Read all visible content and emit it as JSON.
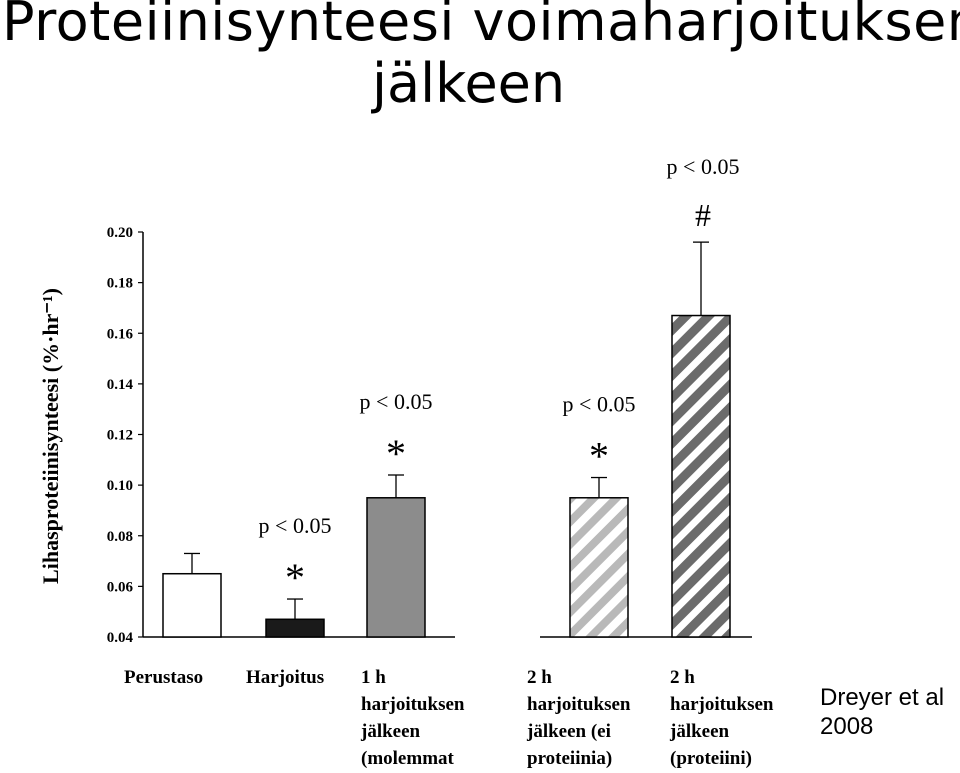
{
  "title_line1": "Proteiinisynteesi voimaharjoituksen",
  "title_line2": "jälkeen",
  "citation_line1": "Dreyer et al",
  "citation_line2": "2008",
  "chart_data": {
    "type": "bar",
    "ylabel": "Lihasproteiinisynteesi (%·hr⁻¹)",
    "ylim": [
      0.04,
      0.2
    ],
    "yticks": [
      "0.04",
      "0.06",
      "0.08",
      "0.10",
      "0.12",
      "0.14",
      "0.16",
      "0.18",
      "0.20"
    ],
    "grid": false,
    "categories": [
      [
        "Perustaso"
      ],
      [
        "Harjoitus"
      ],
      [
        "1 h",
        "harjoituksen",
        "jälkeen",
        "(molemmat"
      ],
      [
        "2 h",
        "harjoituksen",
        "jälkeen (ei",
        "proteiinia)"
      ],
      [
        "2 h",
        "harjoituksen",
        "jälkeen",
        "(proteiini)"
      ]
    ],
    "values": [
      0.065,
      0.047,
      0.095,
      0.095,
      0.167
    ],
    "errors": [
      0.008,
      0.008,
      0.009,
      0.008,
      0.029
    ],
    "fills": [
      "#ffffff",
      "#1a1a1a",
      "#8c8c8c",
      "stripe-light",
      "stripe-dark"
    ],
    "annotations": [
      {
        "bar": 1,
        "mark": "*",
        "p": "p < 0.05"
      },
      {
        "bar": 2,
        "mark": "*",
        "p": "p < 0.05"
      },
      {
        "bar": 3,
        "mark": "*",
        "p": "p < 0.05"
      },
      {
        "bar": 4,
        "mark": "#",
        "p": "p < 0.05"
      }
    ]
  }
}
